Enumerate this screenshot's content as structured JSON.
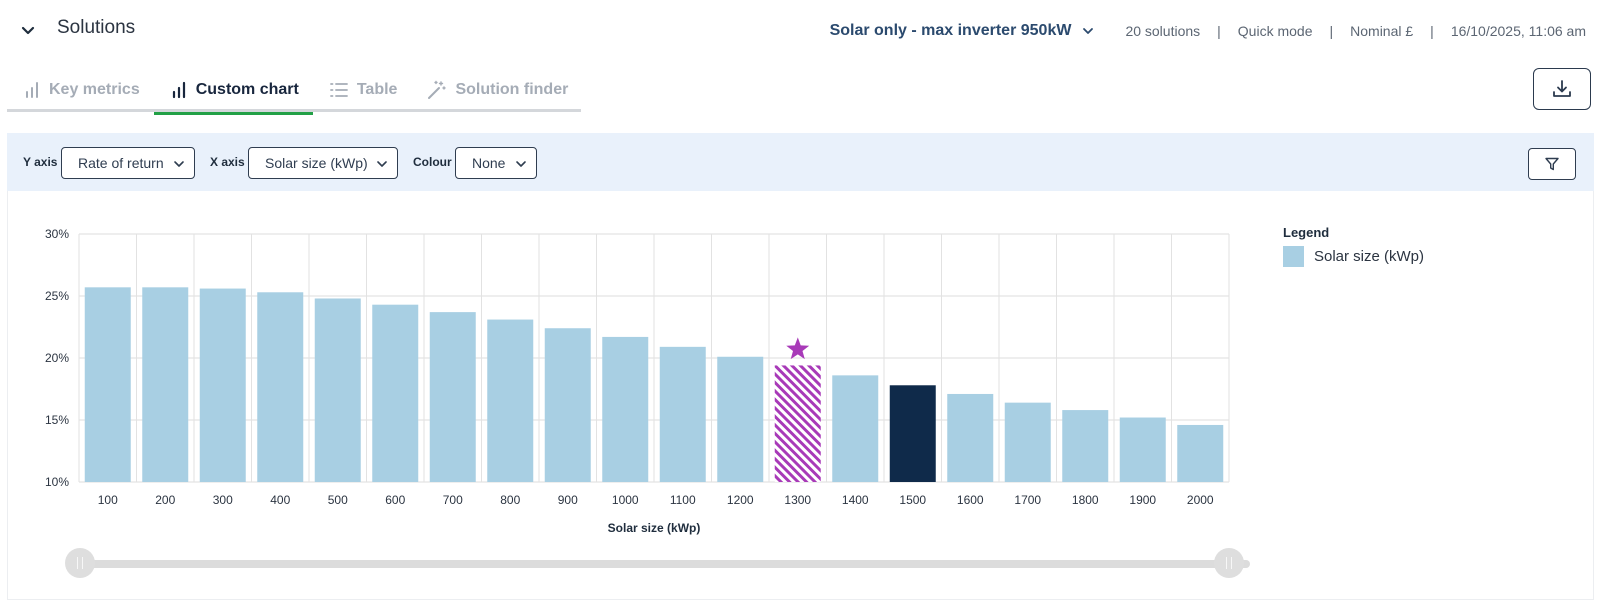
{
  "header": {
    "title": "Solutions",
    "scenario": "Solar only - max inverter 950kW",
    "solutions_count": "20 solutions",
    "mode": "Quick mode",
    "currency": "Nominal £",
    "timestamp": "16/10/2025, 11:06 am",
    "separator": "|"
  },
  "tabs": [
    {
      "label": "Key metrics",
      "icon": "bar-chart-icon",
      "active": false
    },
    {
      "label": "Custom chart",
      "icon": "bar-chart-icon",
      "active": true
    },
    {
      "label": "Table",
      "icon": "list-icon",
      "active": false
    },
    {
      "label": "Solution finder",
      "icon": "magic-wand-icon",
      "active": false
    }
  ],
  "toolbar": {
    "y_axis_label": "Y axis",
    "y_axis_value": "Rate of return",
    "x_axis_label": "X axis",
    "x_axis_value": "Solar size (kWp)",
    "colour_label": "Colour",
    "colour_value": "None"
  },
  "legend": {
    "title": "Legend",
    "item": "Solar size (kWp)",
    "color": "#a8cfe3"
  },
  "colors": {
    "bar": "#a8cfe3",
    "selected": "#0f2a4a",
    "starred": "#a83ab8",
    "accent_tab": "#22a046"
  },
  "chart_data": {
    "type": "bar",
    "xlabel": "Solar size (kWp)",
    "ylabel": "",
    "ylim": [
      10,
      30
    ],
    "yticks": [
      10,
      15,
      20,
      25,
      30
    ],
    "ytick_suffix": "%",
    "grid": true,
    "categories": [
      "100",
      "200",
      "300",
      "400",
      "500",
      "600",
      "700",
      "800",
      "900",
      "1000",
      "1100",
      "1200",
      "1300",
      "1400",
      "1500",
      "1600",
      "1700",
      "1800",
      "1900",
      "2000"
    ],
    "values": [
      25.7,
      25.7,
      25.6,
      25.3,
      24.8,
      24.3,
      23.7,
      23.1,
      22.4,
      21.7,
      20.9,
      20.1,
      19.4,
      18.6,
      17.8,
      17.1,
      16.4,
      15.8,
      15.2,
      14.6
    ],
    "starred_category": "1300",
    "selected_category": "1500",
    "legend_position": "top-right"
  }
}
